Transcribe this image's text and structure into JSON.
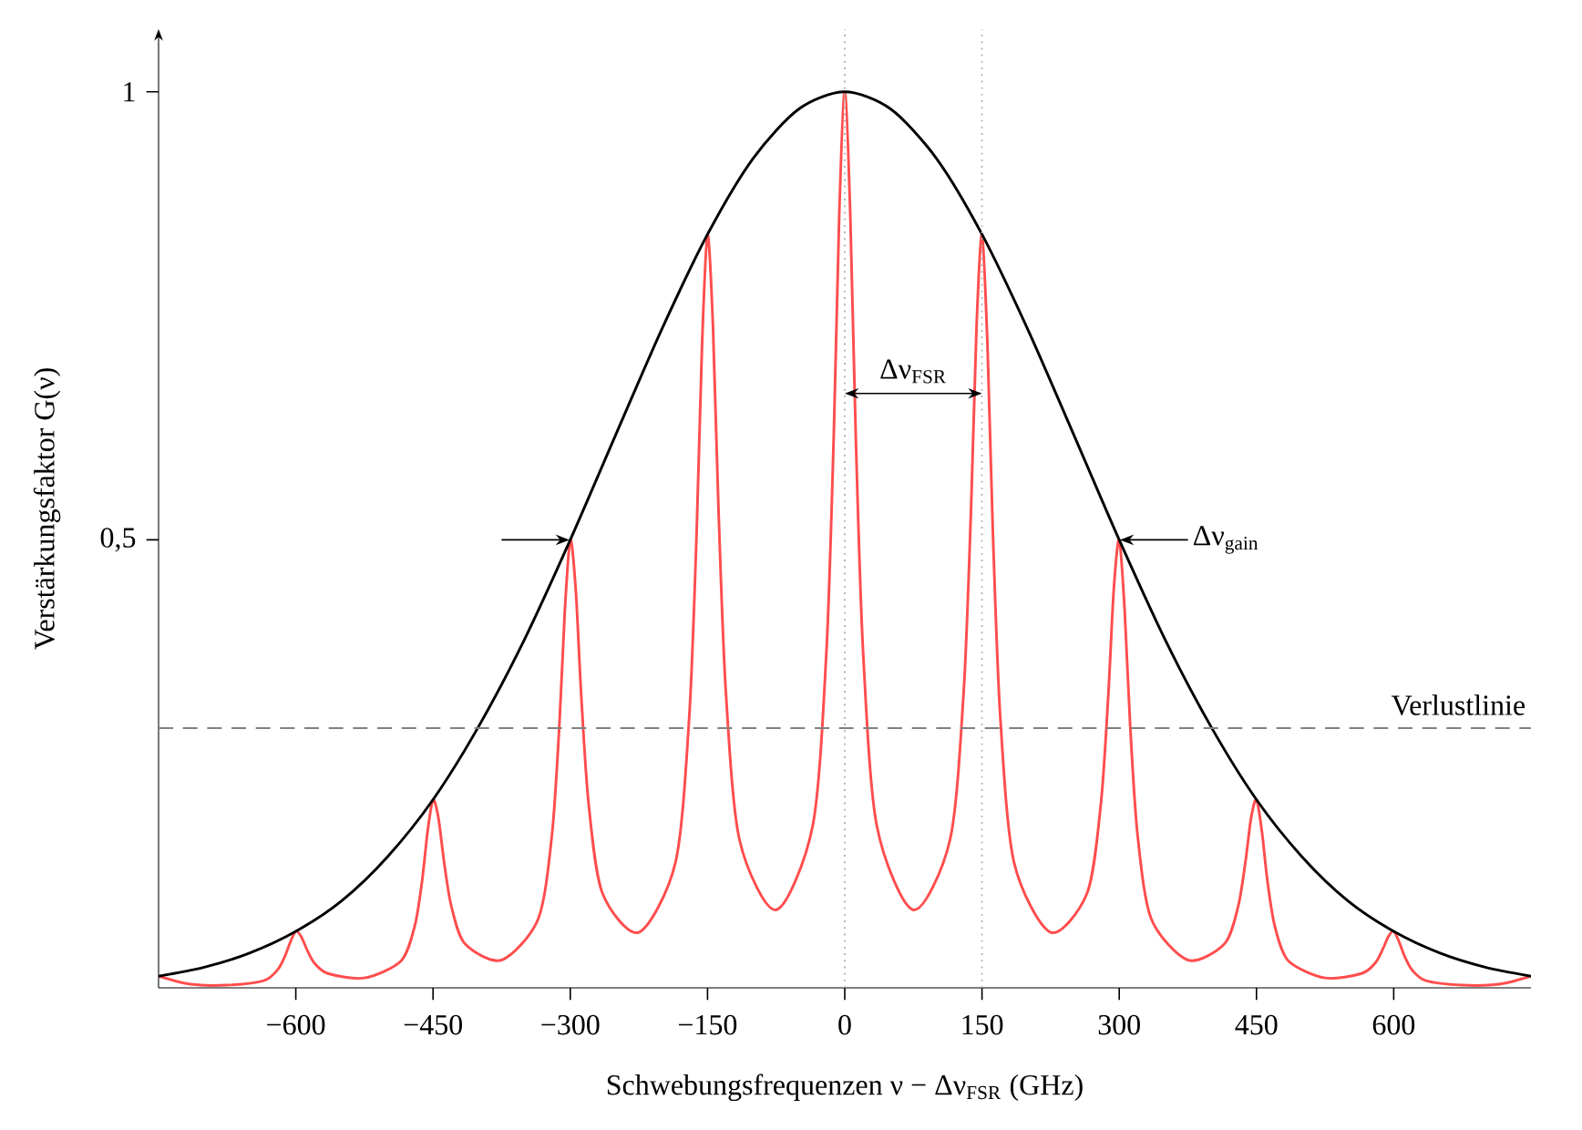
{
  "chart_data": {
    "type": "line",
    "xlabel": "Schwebungsfrequenzen ν − Δν$_{FSR}$ (GHz)",
    "ylabel": "Verstärkungsfaktor G(ν)",
    "xlim": [
      -750,
      750
    ],
    "ylim": [
      0,
      1.07
    ],
    "xticks": [
      {
        "value": -600,
        "label": "−600"
      },
      {
        "value": -450,
        "label": "−450"
      },
      {
        "value": -300,
        "label": "−300"
      },
      {
        "value": -150,
        "label": "−150"
      },
      0,
      150,
      300,
      450,
      600
    ],
    "yticks": [
      {
        "value": 0.5,
        "label": "0,5"
      },
      1
    ],
    "series": [
      {
        "color": "#ff4d4d",
        "x": [
          -750,
          -715,
          -675,
          -635,
          -620,
          -612,
          -606,
          -600,
          -594,
          -588,
          -580,
          -565,
          -525,
          -485,
          -470,
          -462,
          -456,
          -450,
          -444,
          -438,
          -430,
          -415,
          -375,
          -335,
          -320,
          -312,
          -306,
          -300,
          -294,
          -288,
          -280,
          -265,
          -225,
          -185,
          -170,
          -162,
          -156,
          -150,
          -144,
          -138,
          -130,
          -115,
          -75,
          -35,
          -20,
          -12,
          -6,
          0,
          6,
          12,
          20,
          35,
          75,
          115,
          130,
          138,
          144,
          150,
          156,
          162,
          170,
          185,
          225,
          265,
          280,
          288,
          294,
          300,
          306,
          312,
          320,
          335,
          375,
          415,
          430,
          438,
          444,
          450,
          456,
          462,
          470,
          485,
          525,
          565,
          580,
          588,
          594,
          600,
          606,
          612,
          620,
          635,
          675,
          715,
          750
        ],
        "values": [
          0.013,
          0.004,
          0.003,
          0.008,
          0.02,
          0.035,
          0.051,
          0.063,
          0.057,
          0.043,
          0.028,
          0.016,
          0.011,
          0.03,
          0.069,
          0.119,
          0.174,
          0.21,
          0.189,
          0.141,
          0.091,
          0.049,
          0.031,
          0.077,
          0.171,
          0.292,
          0.42,
          0.5,
          0.444,
          0.326,
          0.206,
          0.106,
          0.062,
          0.14,
          0.302,
          0.505,
          0.717,
          0.841,
          0.737,
          0.534,
          0.331,
          0.165,
          0.087,
          0.181,
          0.376,
          0.617,
          0.864,
          1,
          0.864,
          0.617,
          0.376,
          0.181,
          0.087,
          0.165,
          0.331,
          0.534,
          0.737,
          0.841,
          0.717,
          0.505,
          0.302,
          0.14,
          0.062,
          0.106,
          0.206,
          0.326,
          0.444,
          0.5,
          0.42,
          0.292,
          0.171,
          0.077,
          0.031,
          0.049,
          0.091,
          0.141,
          0.189,
          0.21,
          0.174,
          0.119,
          0.069,
          0.03,
          0.011,
          0.016,
          0.028,
          0.043,
          0.057,
          0.063,
          0.051,
          0.035,
          0.02,
          0.008,
          0.003,
          0.004,
          0.013
        ]
      },
      {
        "color": "#000000",
        "x": [
          -750,
          -700,
          -650,
          -600,
          -550,
          -500,
          -450,
          -400,
          -350,
          -300,
          -250,
          -200,
          -150,
          -100,
          -50,
          0,
          50,
          100,
          150,
          200,
          250,
          300,
          350,
          400,
          450,
          500,
          550,
          600,
          650,
          700,
          750
        ],
        "values": [
          0.013,
          0.023,
          0.039,
          0.063,
          0.097,
          0.146,
          0.21,
          0.292,
          0.389,
          0.5,
          0.618,
          0.735,
          0.841,
          0.926,
          0.981,
          1,
          0.981,
          0.926,
          0.841,
          0.735,
          0.618,
          0.5,
          0.389,
          0.292,
          0.21,
          0.146,
          0.097,
          0.063,
          0.039,
          0.023,
          0.013
        ]
      }
    ],
    "ref_lines": [
      {
        "axis": "y",
        "value": 0.29,
        "label": "Verlustlinie",
        "color": "#808080",
        "line_style": "dashed"
      },
      {
        "axis": "x",
        "value": 0,
        "color": "#b0b0b0",
        "line_style": "dotted"
      },
      {
        "axis": "x",
        "value": 150,
        "color": "#b0b0b0",
        "line_style": "dotted"
      }
    ],
    "annotations": [
      "Δν$_{FSR}$",
      {
        "text": "Δν$_{gain}$",
        "x": 300,
        "y": 0.5
      }
    ]
  }
}
